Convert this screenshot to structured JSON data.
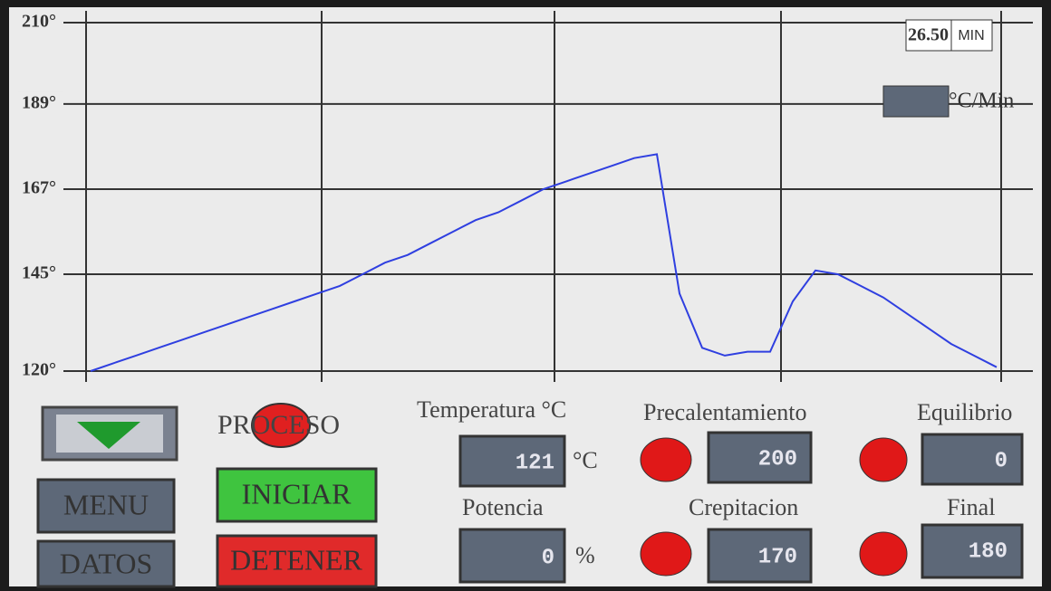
{
  "chart_data": {
    "type": "line",
    "ylim": [
      120,
      210
    ],
    "yticks": [
      {
        "value": 210,
        "label": "210°"
      },
      {
        "value": 189,
        "label": "189°"
      },
      {
        "value": 167,
        "label": "167°"
      },
      {
        "value": 145,
        "label": "145°"
      },
      {
        "value": 120,
        "label": "120°"
      }
    ],
    "grid": true,
    "series": [
      {
        "color": "#2f3fe0",
        "values": [
          120,
          122,
          124,
          126,
          128,
          130,
          132,
          134,
          136,
          138,
          140,
          142,
          145,
          148,
          150,
          153,
          156,
          159,
          161,
          164,
          167,
          169,
          171,
          173,
          175,
          176,
          140,
          126,
          124,
          125,
          125,
          138,
          146,
          145,
          142,
          139,
          135,
          131,
          127,
          124,
          121
        ]
      }
    ]
  },
  "status": {
    "elapsed": "26.50",
    "elapsed_unit": "MIN",
    "rate_unit": "°C/Min"
  },
  "process_label": "PROCESO",
  "buttons": {
    "menu": "MENU",
    "datos": "DATOS",
    "iniciar": "INICIAR",
    "detener": "DETENER"
  },
  "readouts": [
    {
      "label": "Temperatura °C",
      "value": "121",
      "unit": "°C"
    },
    {
      "label": "Potencia",
      "value": "0",
      "unit": "%"
    },
    {
      "label": "Precalentamiento",
      "value": "200"
    },
    {
      "label": "Crepitacion",
      "value": "170"
    },
    {
      "label": "Equilibrio",
      "value": "0"
    },
    {
      "label": "Final",
      "value": "180"
    }
  ]
}
